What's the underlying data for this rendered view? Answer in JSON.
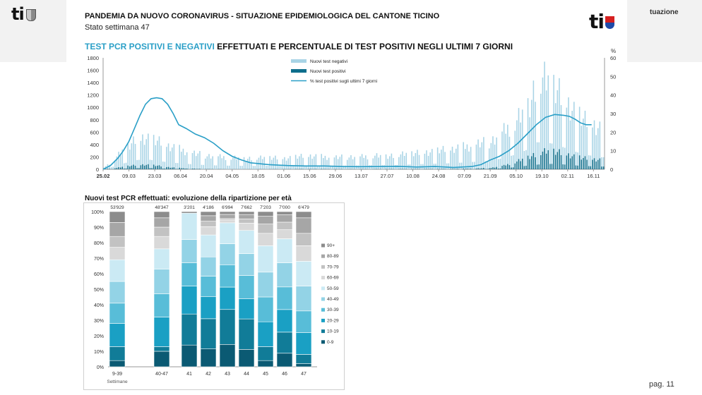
{
  "header": {
    "left_logo": "ti",
    "right_fragment": "tuazione",
    "page": "pag. 11"
  },
  "slide": {
    "title": "PANDEMIA DA NUOVO CORONAVIRUS - SITUAZIONE EPIDEMIOLOGICA DEL CANTONE TICINO",
    "subtitle": "Stato settimana 47",
    "logo": "ti"
  },
  "chart_data": [
    {
      "type": "bar",
      "title_highlight": "TEST PCR POSITIVI E NEGATIVI",
      "title_rest": "EFFETTUATI E PERCENTUALE DI TEST POSITIVI NEGLI ULTIMI 7 GIORNI",
      "y_left_ticks": [
        "0",
        "200",
        "400",
        "600",
        "800",
        "1000",
        "1200",
        "1400",
        "1600",
        "1800"
      ],
      "y_right_ticks": [
        "0",
        "10",
        "20",
        "30",
        "40",
        "50",
        "60"
      ],
      "y_right_unit": "%",
      "ylim": [
        0,
        1800
      ],
      "y2lim": [
        0,
        60
      ],
      "x_tick_labels": [
        "25.02",
        "09.03",
        "23.03",
        "06.04",
        "20.04",
        "04.05",
        "18.05",
        "01.06",
        "15.06",
        "29.06",
        "13.07",
        "27.07",
        "10.08",
        "24.08",
        "07.09",
        "21.09",
        "05.10",
        "19.10",
        "02.11",
        "16.11"
      ],
      "legend_position": "top",
      "series": [
        {
          "name": "Nuovi test negativi",
          "color": "#a9d4e6",
          "kind": "bar"
        },
        {
          "name": "Nuovi test positivi",
          "color": "#0e6e8c",
          "kind": "bar"
        },
        {
          "name": "% test positivi sugli ultimi 7 giorni",
          "color": "#2a9fc7",
          "kind": "line",
          "axis": "right"
        }
      ],
      "trend_negativi": [
        [
          0,
          30
        ],
        [
          3,
          80
        ],
        [
          6,
          150
        ],
        [
          10,
          260
        ],
        [
          14,
          340
        ],
        [
          17,
          420
        ],
        [
          21,
          450
        ],
        [
          25,
          440
        ],
        [
          28,
          400
        ],
        [
          31,
          380
        ],
        [
          35,
          340
        ],
        [
          42,
          300
        ],
        [
          49,
          250
        ],
        [
          56,
          220
        ],
        [
          63,
          200
        ],
        [
          70,
          190
        ],
        [
          77,
          180
        ],
        [
          84,
          180
        ],
        [
          91,
          190
        ],
        [
          98,
          180
        ],
        [
          105,
          200
        ],
        [
          112,
          210
        ],
        [
          119,
          200
        ],
        [
          126,
          190
        ],
        [
          133,
          200
        ],
        [
          140,
          200
        ],
        [
          147,
          220
        ],
        [
          154,
          220
        ],
        [
          161,
          230
        ],
        [
          168,
          260
        ],
        [
          175,
          280
        ],
        [
          182,
          300
        ],
        [
          189,
          320
        ],
        [
          196,
          360
        ],
        [
          203,
          400
        ],
        [
          210,
          430
        ],
        [
          217,
          560
        ],
        [
          224,
          680
        ],
        [
          231,
          900
        ],
        [
          235,
          1200
        ],
        [
          240,
          1150
        ],
        [
          245,
          1050
        ],
        [
          250,
          900
        ],
        [
          255,
          760
        ],
        [
          260,
          620
        ],
        [
          270,
          500
        ]
      ],
      "trend_positivi": [
        [
          0,
          5
        ],
        [
          5,
          15
        ],
        [
          10,
          40
        ],
        [
          14,
          60
        ],
        [
          18,
          70
        ],
        [
          22,
          80
        ],
        [
          26,
          70
        ],
        [
          30,
          55
        ],
        [
          35,
          35
        ],
        [
          42,
          20
        ],
        [
          49,
          10
        ],
        [
          56,
          5
        ],
        [
          63,
          3
        ],
        [
          70,
          2
        ],
        [
          90,
          3
        ],
        [
          112,
          5
        ],
        [
          133,
          4
        ],
        [
          168,
          6
        ],
        [
          189,
          8
        ],
        [
          200,
          12
        ],
        [
          210,
          25
        ],
        [
          217,
          60
        ],
        [
          224,
          130
        ],
        [
          231,
          220
        ],
        [
          238,
          280
        ],
        [
          244,
          300
        ],
        [
          250,
          260
        ],
        [
          256,
          210
        ],
        [
          260,
          180
        ],
        [
          270,
          150
        ]
      ],
      "pct_line": [
        [
          0,
          0
        ],
        [
          4,
          2
        ],
        [
          8,
          6
        ],
        [
          11,
          10
        ],
        [
          14,
          15
        ],
        [
          17,
          22
        ],
        [
          20,
          29
        ],
        [
          23,
          35
        ],
        [
          26,
          38
        ],
        [
          29,
          38.5
        ],
        [
          32,
          38
        ],
        [
          35,
          35
        ],
        [
          38,
          30
        ],
        [
          41,
          24
        ],
        [
          45,
          22
        ],
        [
          50,
          19
        ],
        [
          55,
          17
        ],
        [
          60,
          14
        ],
        [
          65,
          10
        ],
        [
          70,
          7
        ],
        [
          75,
          5
        ],
        [
          80,
          3.5
        ],
        [
          90,
          2.5
        ],
        [
          100,
          2
        ],
        [
          110,
          1.8
        ],
        [
          120,
          1.8
        ],
        [
          130,
          1.5
        ],
        [
          140,
          1.4
        ],
        [
          150,
          1.5
        ],
        [
          160,
          1.6
        ],
        [
          170,
          1.2
        ],
        [
          180,
          1.5
        ],
        [
          190,
          1
        ],
        [
          200,
          1.5
        ],
        [
          205,
          2.5
        ],
        [
          210,
          5
        ],
        [
          215,
          7
        ],
        [
          220,
          10
        ],
        [
          225,
          14
        ],
        [
          230,
          19
        ],
        [
          235,
          24
        ],
        [
          240,
          28
        ],
        [
          245,
          29.5
        ],
        [
          250,
          29
        ],
        [
          253,
          28.5
        ],
        [
          256,
          27
        ],
        [
          259,
          25
        ],
        [
          262,
          24
        ],
        [
          265,
          24
        ]
      ]
    },
    {
      "type": "bar",
      "stacked": "percent",
      "title": "Nuovi test PCR effettuati: evoluzione della ripartizione per età",
      "y_ticks": [
        "0%",
        "10%",
        "20%",
        "30%",
        "40%",
        "50%",
        "60%",
        "70%",
        "80%",
        "90%",
        "100%"
      ],
      "ylim": [
        0,
        100
      ],
      "xlabel": "Settimane",
      "categories": [
        "9-39",
        "40-47",
        "41",
        "42",
        "43",
        "44",
        "45",
        "46",
        "47"
      ],
      "totals": [
        "53'929",
        "48'347",
        "3'201",
        "4'186",
        "6'994",
        "7'662",
        "7'203",
        "7'000",
        "6'479"
      ],
      "legend_position": "right",
      "age_groups": [
        "0-9",
        "10-19",
        "20-29",
        "30-39",
        "40-49",
        "50-59",
        "60-69",
        "70-79",
        "80-89",
        "90+"
      ],
      "colors": [
        "#0b5a73",
        "#117c98",
        "#1aa0c4",
        "#58bdd8",
        "#93d3e6",
        "#cbeaf4",
        "#d9d9d9",
        "#c2c2c2",
        "#a6a6a6",
        "#8c8c8c"
      ],
      "series_values": [
        [
          4,
          10,
          14,
          13,
          16,
          12,
          4,
          9,
          2
        ],
        [
          9,
          3,
          20,
          22,
          25,
          21,
          9,
          14,
          6
        ],
        [
          15,
          19,
          18,
          16,
          16,
          14,
          16,
          15,
          14
        ],
        [
          13,
          15,
          15,
          15,
          16,
          16,
          16,
          15,
          14
        ],
        [
          14,
          16,
          15,
          14,
          15,
          15,
          16,
          16,
          16
        ],
        [
          14,
          13,
          17,
          16,
          15,
          16,
          17,
          16,
          16
        ],
        [
          8,
          8,
          0,
          6,
          2,
          5,
          8,
          6,
          10
        ],
        [
          7,
          6,
          0,
          4,
          1,
          3,
          6,
          5,
          8
        ],
        [
          9,
          6,
          0,
          4,
          3,
          3,
          5,
          5,
          10
        ],
        [
          7,
          4,
          1,
          3,
          2,
          2,
          3,
          2,
          4
        ]
      ]
    }
  ]
}
